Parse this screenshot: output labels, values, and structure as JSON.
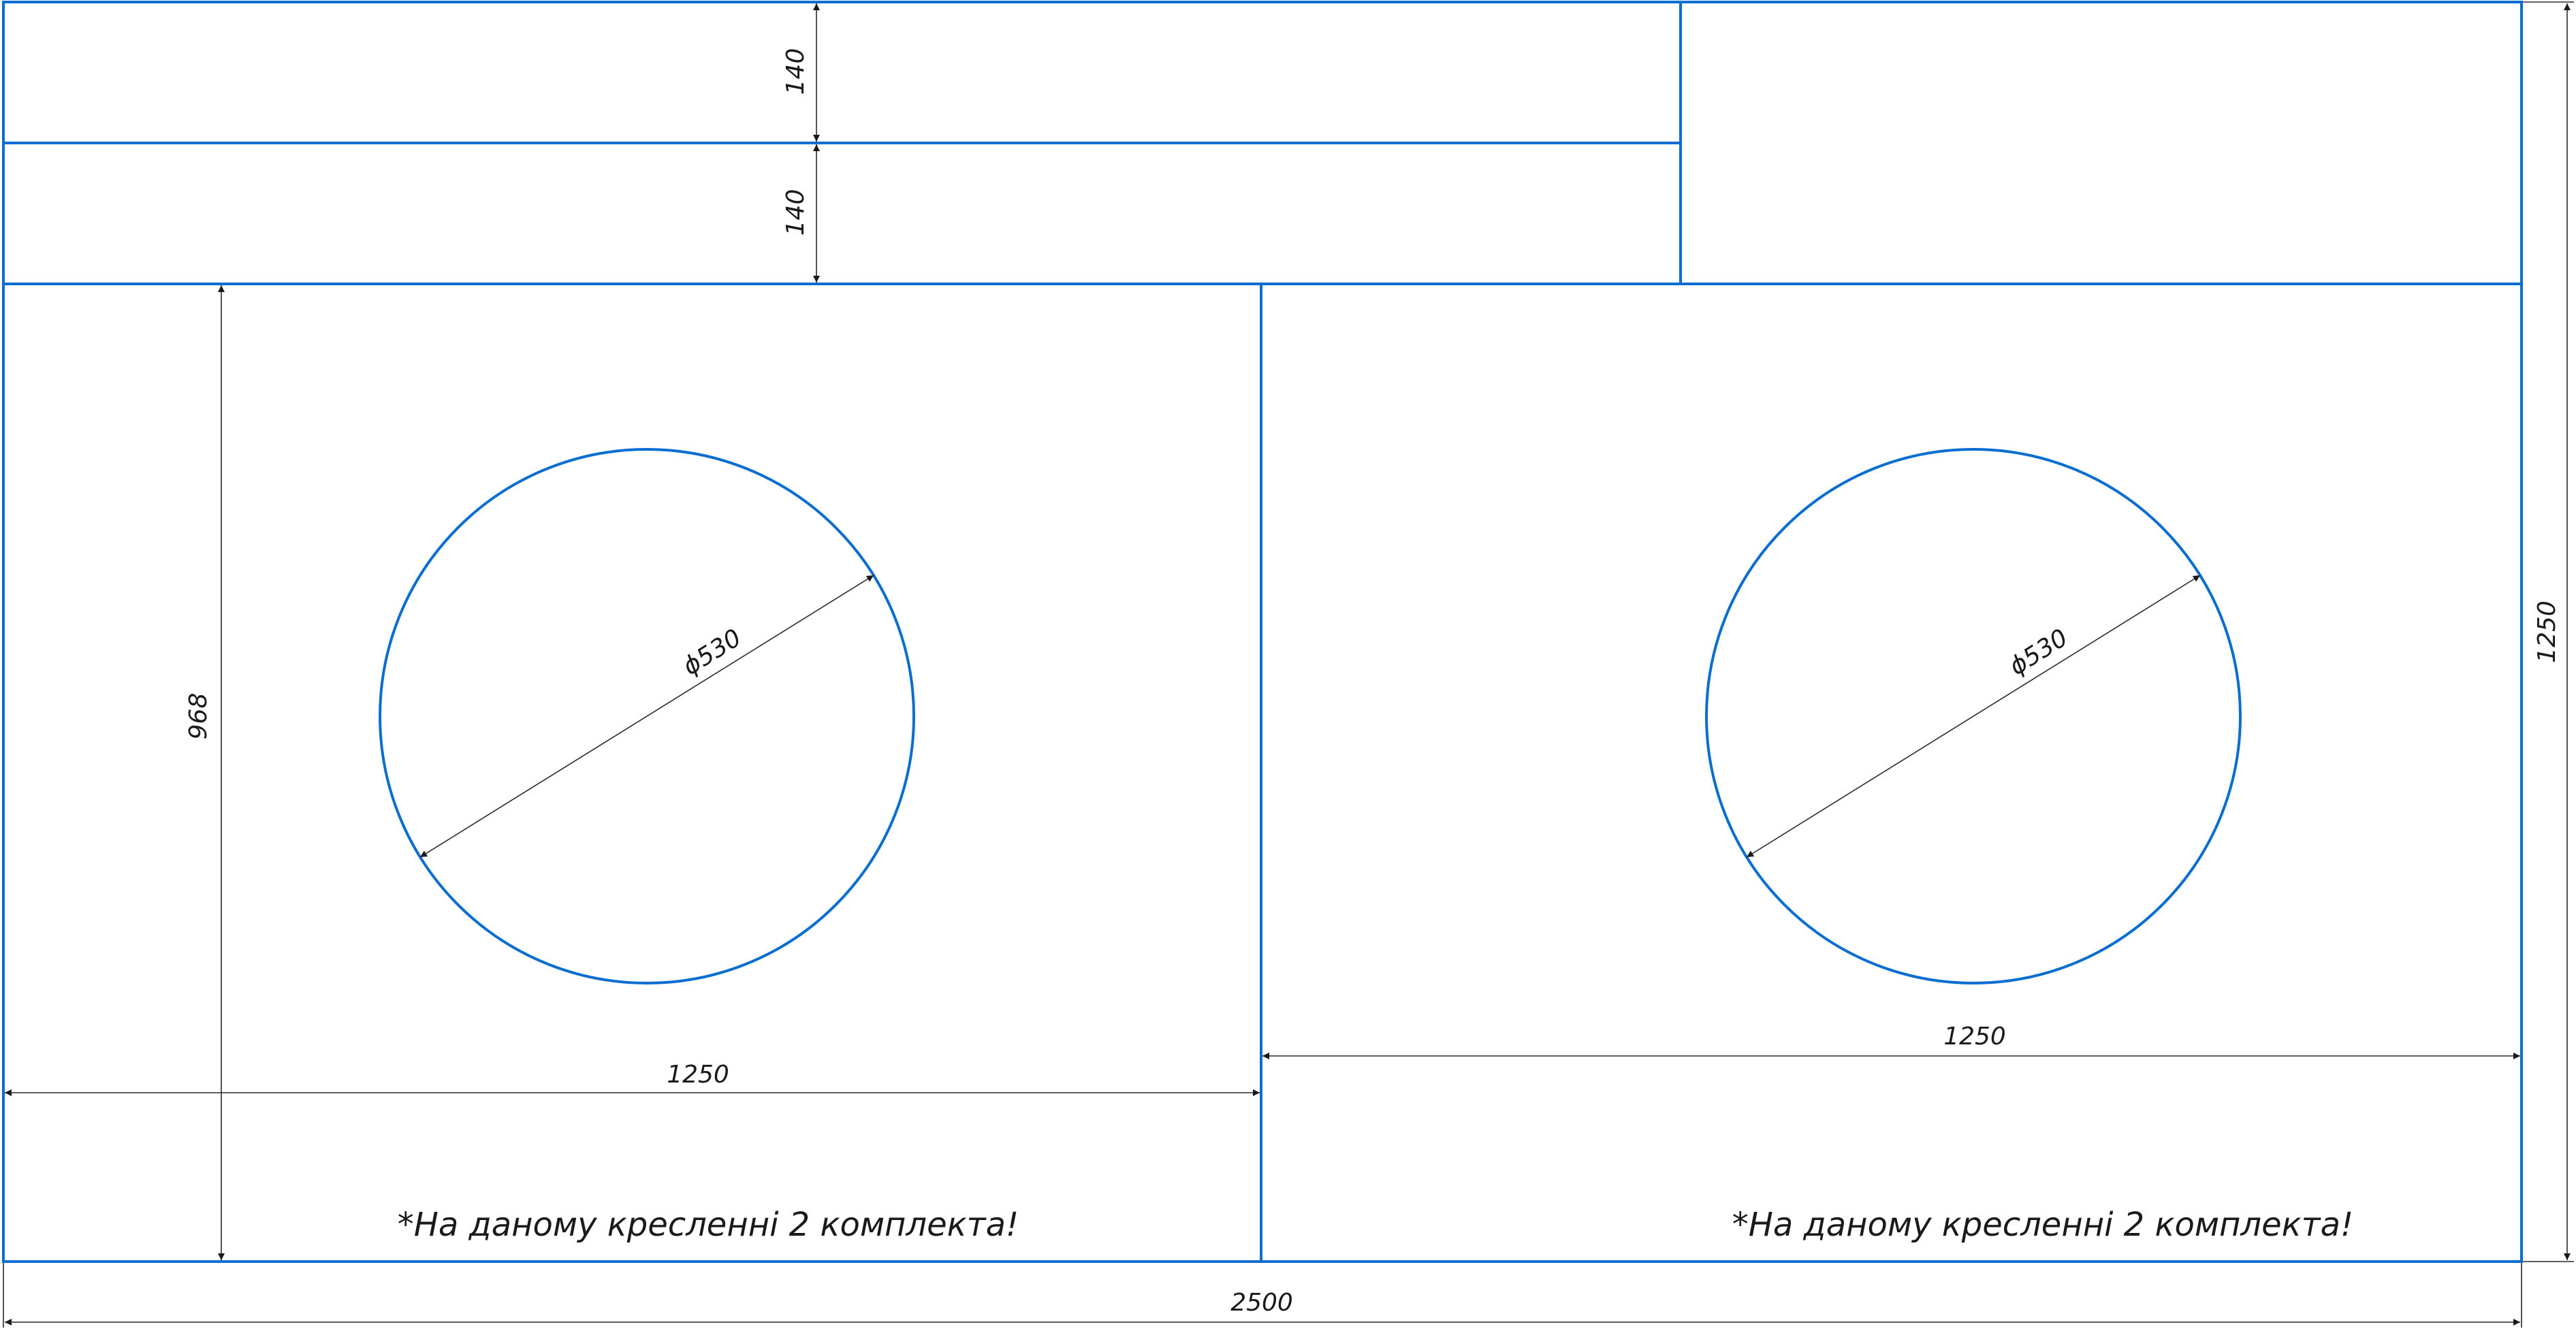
{
  "drawing": {
    "colors": {
      "outline": "#0a6ed1",
      "dimension": "#1a1a1a",
      "background": "#ffffff"
    },
    "dimensions": {
      "strip_top_height": "140",
      "strip_bottom_height": "140",
      "left_panel_height": "968",
      "left_panel_width": "1250",
      "right_panel_width": "1250",
      "total_height": "1250",
      "total_width": "2500",
      "left_hole_diameter": "ϕ530",
      "right_hole_diameter": "ϕ530"
    },
    "notes": {
      "left": "*На даному кресленні 2 комплекта!",
      "right": "*На даному кресленні 2 комплекта!"
    }
  }
}
